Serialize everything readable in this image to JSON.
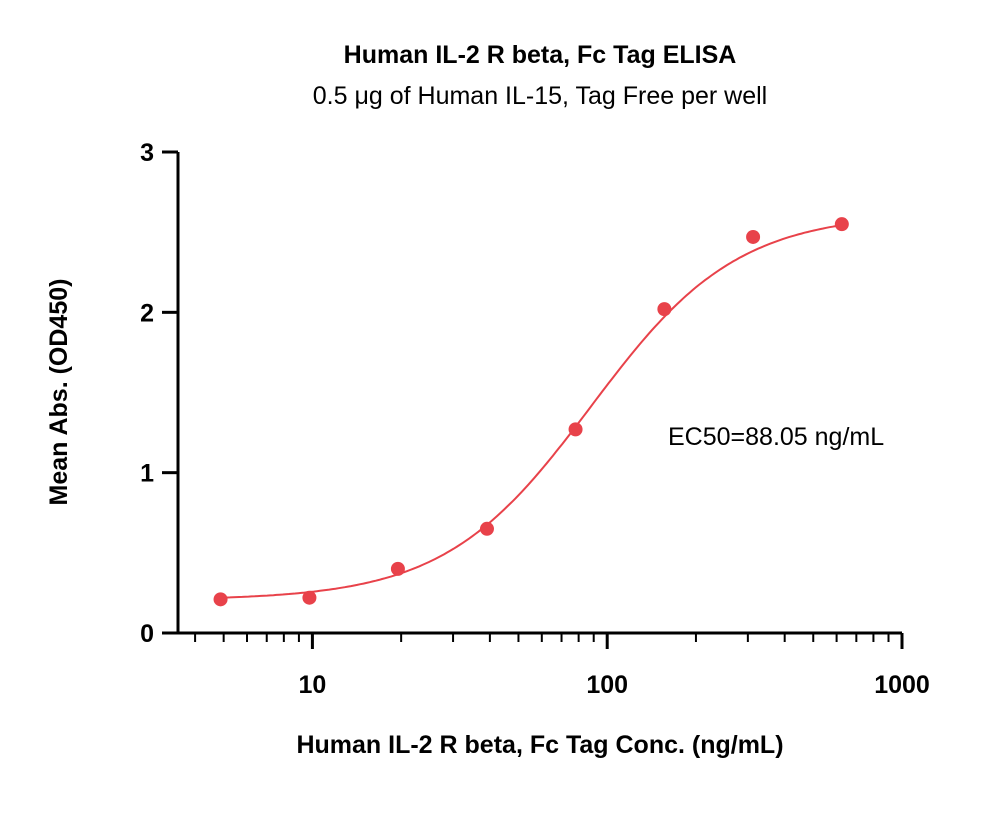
{
  "chart_data": {
    "type": "scatter",
    "title": "Human IL-2 R beta, Fc Tag ELISA",
    "subtitle": "0.5 μg of Human IL-15, Tag Free per well",
    "xlabel": "Human IL-2 R beta, Fc Tag Conc. (ng/mL)",
    "ylabel": "Mean Abs. (OD450)",
    "x_scale": "log",
    "xlim": [
      3.5,
      1000
    ],
    "ylim": [
      0,
      3
    ],
    "x_ticks": [
      10,
      100,
      1000
    ],
    "x_tick_labels": [
      "10",
      "100",
      "1000"
    ],
    "y_ticks": [
      0,
      1,
      2,
      3
    ],
    "y_tick_labels": [
      "0",
      "1",
      "2",
      "3"
    ],
    "grid": false,
    "colors": {
      "points": "#e8424a",
      "curve": "#e8424a",
      "axis": "#000000"
    },
    "series": [
      {
        "x": [
          4.88,
          9.77,
          19.5,
          39.1,
          78.1,
          156.3,
          312.5,
          625
        ],
        "y": [
          0.21,
          0.22,
          0.4,
          0.65,
          1.27,
          2.02,
          2.47,
          2.55
        ]
      }
    ],
    "fit": {
      "type": "4PL",
      "bottom": 0.205,
      "top": 2.62,
      "ec50": 88.05,
      "hill": 1.75,
      "x_range": [
        4.88,
        625
      ]
    },
    "annotation": "EC50=88.05 ng/mL"
  }
}
